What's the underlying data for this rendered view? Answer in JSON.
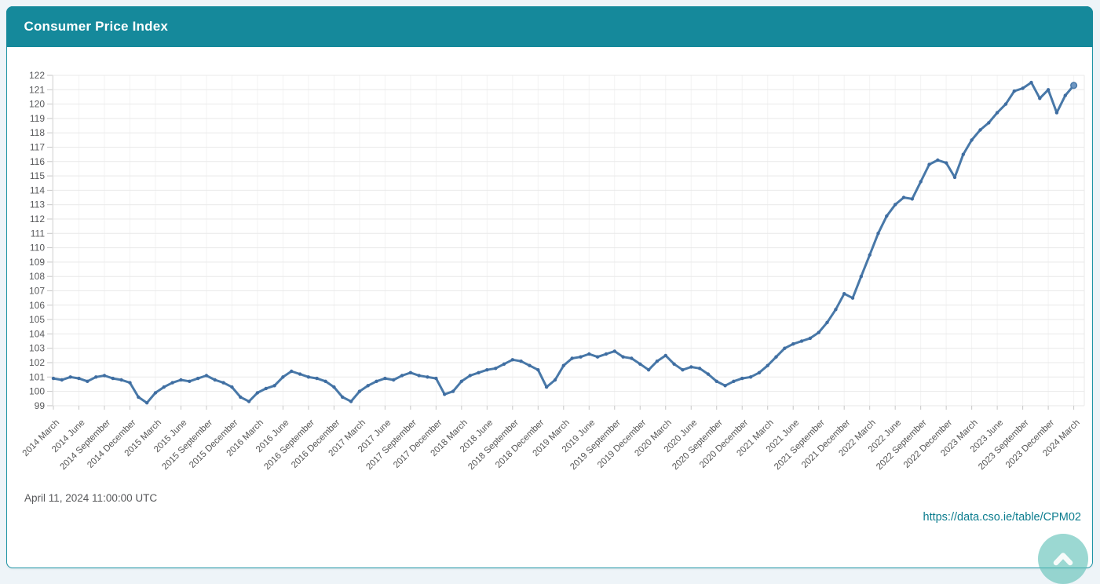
{
  "header": {
    "title": "Consumer Price Index",
    "background": "#15899b",
    "text_color": "#ffffff"
  },
  "card": {
    "background": "#ffffff",
    "border_color": "#1e94a5"
  },
  "footer": {
    "timestamp": "April 11, 2024 11:00:00 UTC",
    "link": "https://data.cso.ie/table/CPM02",
    "link_color": "#0b7c8e"
  },
  "scroll_top_button": {
    "icon": "chevron-up",
    "background": "#5ec0b6"
  },
  "chart_data": {
    "type": "line",
    "title": "Consumer Price Index",
    "series_name": "Consumer Price Index",
    "frequency": "monthly",
    "start": "2014 March",
    "end": "2024 March",
    "line_color": "#4878a8",
    "marker_color": "#3f6da1",
    "grid": true,
    "ylim": [
      99,
      122
    ],
    "y_step": 1,
    "yticks": [
      99,
      100,
      101,
      102,
      103,
      104,
      105,
      106,
      107,
      108,
      109,
      110,
      111,
      112,
      113,
      114,
      115,
      116,
      117,
      118,
      119,
      120,
      121,
      122
    ],
    "x_tick_every": 3,
    "x_tick_labels": [
      "2014 March",
      "2014 June",
      "2014 September",
      "2014 December",
      "2015 March",
      "2015 June",
      "2015 September",
      "2015 December",
      "2016 March",
      "2016 June",
      "2016 September",
      "2016 December",
      "2017 March",
      "2017 June",
      "2017 September",
      "2017 December",
      "2018 March",
      "2018 June",
      "2018 September",
      "2018 December",
      "2019 March",
      "2019 June",
      "2019 September",
      "2019 December",
      "2020 March",
      "2020 June",
      "2020 September",
      "2020 December",
      "2021 March",
      "2021 June",
      "2021 September",
      "2021 December",
      "2022 March",
      "2022 June",
      "2022 September",
      "2022 December",
      "2023 March",
      "2023 June",
      "2023 September",
      "2023 December",
      "2024 March"
    ],
    "values": [
      100.9,
      100.8,
      101.0,
      100.9,
      100.7,
      101.0,
      101.1,
      100.9,
      100.8,
      100.6,
      99.6,
      99.2,
      99.9,
      100.3,
      100.6,
      100.8,
      100.7,
      100.9,
      101.1,
      100.8,
      100.6,
      100.3,
      99.6,
      99.3,
      99.9,
      100.2,
      100.4,
      101.0,
      101.4,
      101.2,
      101.0,
      100.9,
      100.7,
      100.3,
      99.6,
      99.3,
      100.0,
      100.4,
      100.7,
      100.9,
      100.8,
      101.1,
      101.3,
      101.1,
      101.0,
      100.9,
      99.8,
      100.0,
      100.7,
      101.1,
      101.3,
      101.5,
      101.6,
      101.9,
      102.2,
      102.1,
      101.8,
      101.5,
      100.3,
      100.8,
      101.8,
      102.3,
      102.4,
      102.6,
      102.4,
      102.6,
      102.8,
      102.4,
      102.3,
      101.9,
      101.5,
      102.1,
      102.5,
      101.9,
      101.5,
      101.7,
      101.6,
      101.2,
      100.7,
      100.4,
      100.7,
      100.9,
      101.0,
      101.3,
      101.8,
      102.4,
      103.0,
      103.3,
      103.5,
      103.7,
      104.1,
      104.8,
      105.7,
      106.8,
      106.5,
      108.0,
      109.5,
      111.0,
      112.2,
      113.0,
      113.5,
      113.4,
      114.6,
      115.8,
      116.1,
      115.9,
      114.9,
      116.5,
      117.5,
      118.2,
      118.7,
      119.4,
      120.0,
      120.9,
      121.1,
      121.5,
      120.4,
      121.0,
      119.4,
      120.6,
      121.3
    ]
  }
}
